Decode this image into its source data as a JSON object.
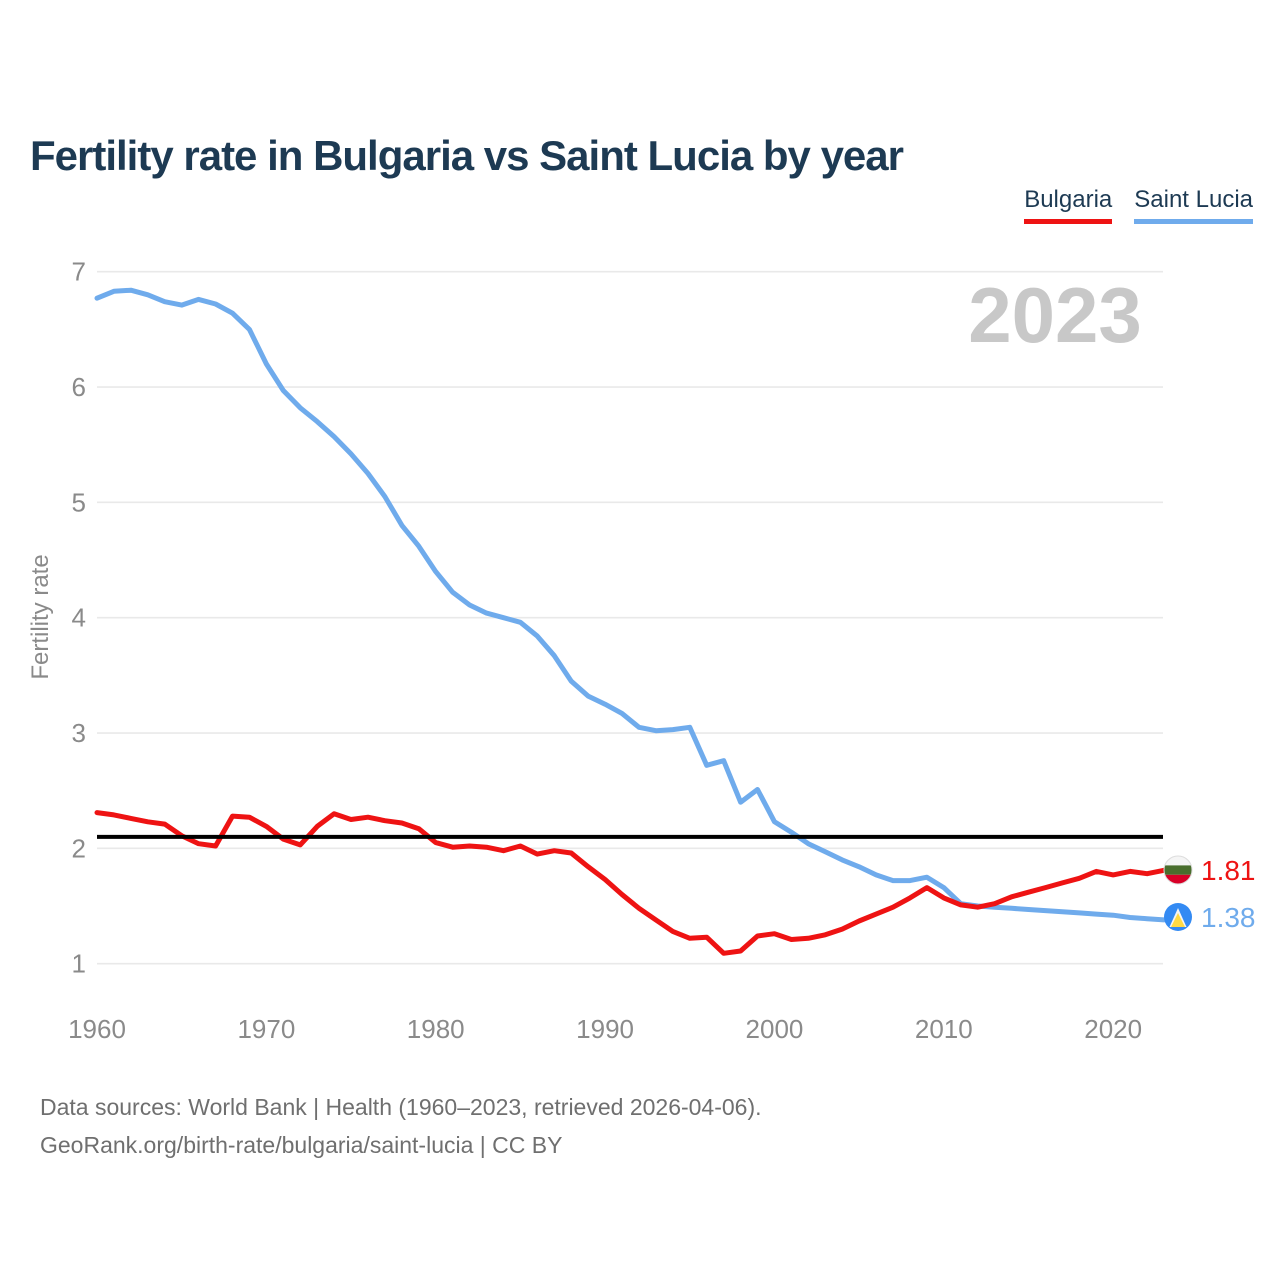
{
  "title": "Fertility rate in Bulgaria vs Saint Lucia by year",
  "watermark_year": "2023",
  "legend": {
    "items": [
      {
        "label": "Bulgaria",
        "color": "#ee1313"
      },
      {
        "label": "Saint Lucia",
        "color": "#6fabec"
      }
    ]
  },
  "y_axis": {
    "label": "Fertility rate",
    "ticks": [
      7,
      6,
      5,
      4,
      3,
      2,
      1
    ]
  },
  "x_axis": {
    "ticks": [
      1960,
      1970,
      1980,
      1990,
      2000,
      2010,
      2020
    ]
  },
  "reference_line": {
    "value": 2.1,
    "color": "#000000"
  },
  "end_labels": [
    {
      "series": "Bulgaria",
      "value": "1.81",
      "color": "#ee1313",
      "flag": "bulgaria-flag"
    },
    {
      "series": "Saint Lucia",
      "value": "1.38",
      "color": "#6fabec",
      "flag": "saint-lucia-flag"
    }
  ],
  "footer": {
    "line1": "Data sources: World Bank | Health (1960–2023, retrieved 2026-04-06).",
    "line2": "GeoRank.org/birth-rate/bulgaria/saint-lucia | CC BY"
  },
  "chart_data": {
    "type": "line",
    "title": "Fertility rate in Bulgaria vs Saint Lucia by year",
    "xlabel": "year",
    "ylabel": "Fertility rate",
    "x_range": [
      1960,
      2023
    ],
    "ylim": [
      1,
      7
    ],
    "grid": "horizontal",
    "legend_position": "top-right",
    "watermark": "2023",
    "reference_line_y": 2.1,
    "x": [
      1960,
      1961,
      1962,
      1963,
      1964,
      1965,
      1966,
      1967,
      1968,
      1969,
      1970,
      1971,
      1972,
      1973,
      1974,
      1975,
      1976,
      1977,
      1978,
      1979,
      1980,
      1981,
      1982,
      1983,
      1984,
      1985,
      1986,
      1987,
      1988,
      1989,
      1990,
      1991,
      1992,
      1993,
      1994,
      1995,
      1996,
      1997,
      1998,
      1999,
      2000,
      2001,
      2002,
      2003,
      2004,
      2005,
      2006,
      2007,
      2008,
      2009,
      2010,
      2011,
      2012,
      2013,
      2014,
      2015,
      2016,
      2017,
      2018,
      2019,
      2020,
      2021,
      2022,
      2023
    ],
    "series": [
      {
        "name": "Bulgaria",
        "color": "#ee1313",
        "end_value": 1.81,
        "values": [
          2.31,
          2.29,
          2.26,
          2.23,
          2.21,
          2.11,
          2.04,
          2.02,
          2.28,
          2.27,
          2.19,
          2.08,
          2.03,
          2.19,
          2.3,
          2.25,
          2.27,
          2.24,
          2.22,
          2.17,
          2.05,
          2.01,
          2.02,
          2.01,
          1.98,
          2.02,
          1.95,
          1.98,
          1.96,
          1.84,
          1.73,
          1.6,
          1.48,
          1.38,
          1.28,
          1.22,
          1.23,
          1.09,
          1.11,
          1.24,
          1.26,
          1.21,
          1.22,
          1.25,
          1.3,
          1.37,
          1.43,
          1.49,
          1.57,
          1.66,
          1.57,
          1.51,
          1.49,
          1.52,
          1.58,
          1.62,
          1.66,
          1.7,
          1.74,
          1.8,
          1.77,
          1.8,
          1.78,
          1.81
        ]
      },
      {
        "name": "Saint Lucia",
        "color": "#6fabec",
        "end_value": 1.38,
        "values": [
          6.77,
          6.83,
          6.84,
          6.8,
          6.74,
          6.71,
          6.76,
          6.72,
          6.64,
          6.5,
          6.2,
          5.97,
          5.82,
          5.7,
          5.57,
          5.42,
          5.25,
          5.05,
          4.8,
          4.62,
          4.4,
          4.22,
          4.11,
          4.04,
          4.0,
          3.96,
          3.84,
          3.67,
          3.45,
          3.32,
          3.25,
          3.17,
          3.05,
          3.02,
          3.03,
          3.05,
          2.72,
          2.76,
          2.4,
          2.51,
          2.23,
          2.14,
          2.04,
          1.97,
          1.9,
          1.84,
          1.77,
          1.72,
          1.72,
          1.75,
          1.66,
          1.52,
          1.5,
          1.49,
          1.48,
          1.47,
          1.46,
          1.45,
          1.44,
          1.43,
          1.42,
          1.4,
          1.39,
          1.38
        ]
      }
    ]
  }
}
